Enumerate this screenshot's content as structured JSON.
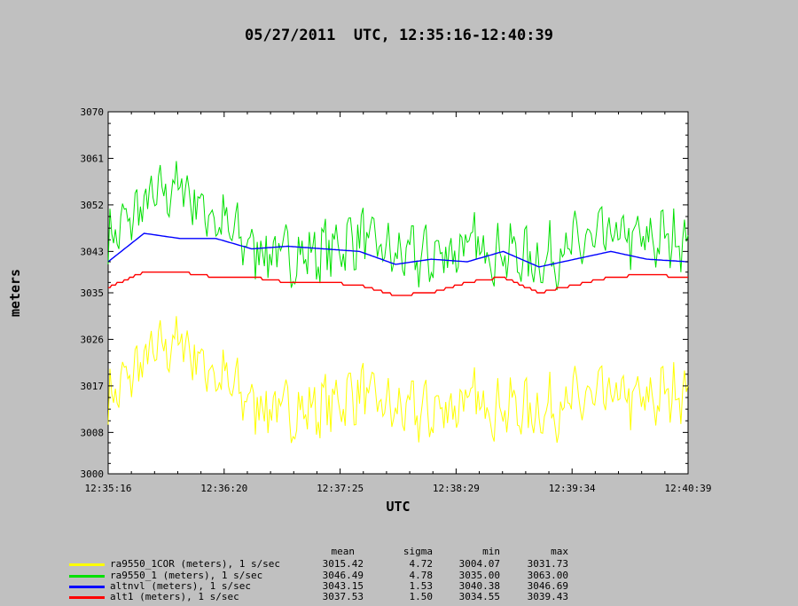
{
  "title": "05/27/2011  UTC, 12:35:16-12:40:39",
  "chart_data": {
    "type": "line",
    "title": "05/27/2011  UTC, 12:35:16-12:40:39",
    "xlabel": "UTC",
    "ylabel": "meters",
    "x_ticks": [
      "12:35:16",
      "12:36:20",
      "12:37:25",
      "12:38:29",
      "12:39:34",
      "12:40:39"
    ],
    "xlim": [
      "12:35:16",
      "12:40:39"
    ],
    "y_ticks": [
      3000,
      3008,
      3017,
      3026,
      3035,
      3043,
      3052,
      3061,
      3070
    ],
    "ylim": [
      3000,
      3070
    ],
    "grid": false,
    "legend_placement": "bottom",
    "x_seconds": [
      0,
      20,
      40,
      60,
      80,
      100,
      120,
      140,
      160,
      180,
      200,
      220,
      240,
      260,
      280,
      300,
      323
    ],
    "series": [
      {
        "name": "ra9550_1COR (meters), 1 s/sec",
        "color": "#ffff00",
        "values": [
          3014,
          3022,
          3026,
          3019,
          3014,
          3012,
          3013,
          3016,
          3012,
          3012,
          3014,
          3013,
          3012,
          3014,
          3015,
          3014,
          3017
        ],
        "noise": 6
      },
      {
        "name": "ra9550_1 (meters), 1 s/sec",
        "color": "#00e000",
        "values": [
          3045,
          3052,
          3056,
          3049,
          3044,
          3042,
          3043,
          3046,
          3042,
          3042,
          3044,
          3043,
          3041,
          3044,
          3046,
          3045,
          3046
        ],
        "noise": 6
      },
      {
        "name": "altnvl (meters), 1 s/sec",
        "color": "#0000ff",
        "values": [
          3041,
          3046.5,
          3045.5,
          3045.5,
          3043.5,
          3044,
          3043.5,
          3043,
          3040.5,
          3041.5,
          3041,
          3043,
          3040,
          3041.5,
          3043,
          3041.5,
          3041
        ]
      },
      {
        "name": "alt1 (meters), 1 s/sec",
        "color": "#ff0000",
        "values": [
          3036,
          3039,
          3039,
          3038,
          3038,
          3037,
          3037,
          3036.5,
          3034.5,
          3035,
          3037,
          3038,
          3035,
          3036.5,
          3038,
          3038.5,
          3038
        ]
      }
    ]
  },
  "stats": {
    "headers": [
      "mean",
      "sigma",
      "min",
      "max"
    ],
    "rows": [
      {
        "mean": "3015.42",
        "sigma": "4.72",
        "min": "3004.07",
        "max": "3031.73"
      },
      {
        "mean": "3046.49",
        "sigma": "4.78",
        "min": "3035.00",
        "max": "3063.00"
      },
      {
        "mean": "3043.15",
        "sigma": "1.53",
        "min": "3040.38",
        "max": "3046.69"
      },
      {
        "mean": "3037.53",
        "sigma": "1.50",
        "min": "3034.55",
        "max": "3039.43"
      }
    ]
  }
}
